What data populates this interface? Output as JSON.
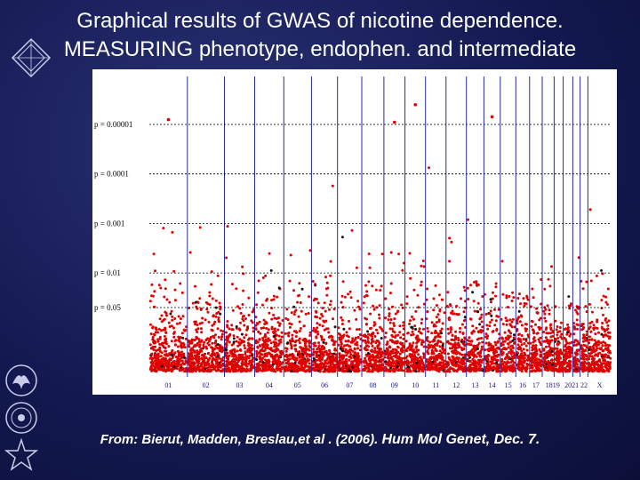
{
  "slide": {
    "title_line1": "Graphical results of GWAS of nicotine dependence.",
    "title_line2": "MEASURING phenotype, endophen. and intermediate",
    "credit_authors": "From: Bierut, Madden, Breslau,et al . (2006).",
    "credit_journal": "Hum Mol Genet, Dec. 7.",
    "logos": [
      "nih-logo",
      "hhs-eagle-icon",
      "nida-seal-icon",
      "hhs-star-icon"
    ]
  },
  "colors": {
    "background": "#141a52",
    "points": "#e00000",
    "highlight_points": "#111111",
    "chromosome_lines": "#2a2aa0",
    "threshold_lines": "#000000"
  },
  "chart_data": {
    "type": "scatter",
    "title": "",
    "xlabel": "",
    "ylabel": "",
    "y_scale": "log (-log10 p)",
    "thresholds": [
      {
        "label": "p = 0.00001",
        "p": 1e-05
      },
      {
        "label": "p = 0.0001",
        "p": 0.0001
      },
      {
        "label": "p = 0.001",
        "p": 0.001
      },
      {
        "label": "p = 0.01",
        "p": 0.01
      },
      {
        "label": "p = 0.05",
        "p": 0.05
      }
    ],
    "chromosome_labels": [
      "01",
      "02",
      "03",
      "04",
      "05",
      "06",
      "07",
      "08",
      "09",
      "10",
      "11",
      "12",
      "13",
      "14",
      "15",
      "16",
      "17",
      "1819",
      "2021",
      "22",
      "X"
    ],
    "chromosome_sizes": [
      249,
      243,
      198,
      191,
      181,
      171,
      159,
      145,
      138,
      134,
      135,
      133,
      115,
      107,
      102,
      90,
      83,
      78,
      59,
      63,
      48,
      51,
      155
    ],
    "notable_points": [
      {
        "chromosome": "10",
        "p": 4e-06
      },
      {
        "chromosome": "01",
        "p": 8e-06
      },
      {
        "chromosome": "14",
        "p": 7e-06
      },
      {
        "chromosome": "09",
        "p": 9e-06
      }
    ]
  }
}
